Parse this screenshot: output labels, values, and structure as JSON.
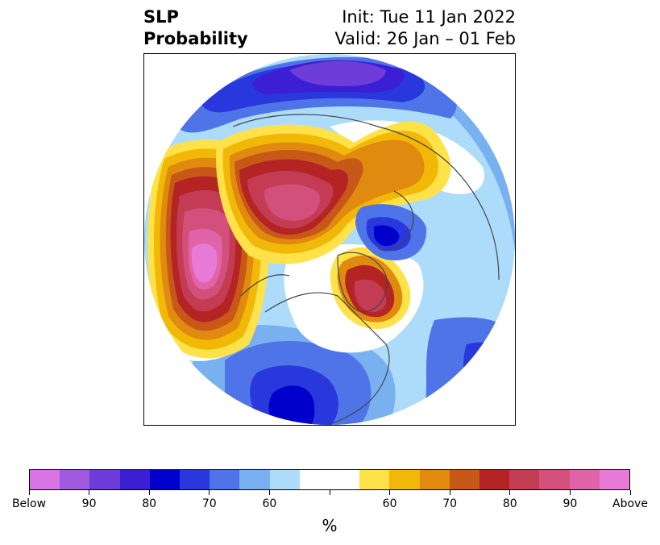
{
  "title": {
    "variable": "SLP",
    "product": "Probability",
    "init": "Init: Tue 11 Jan 2022",
    "valid": "Valid: 26 Jan – 01 Feb"
  },
  "colorbar": {
    "colors": [
      "#d874e4",
      "#a05ae0",
      "#6e3cd8",
      "#3c1ed4",
      "#0000cc",
      "#2838dc",
      "#4f74e8",
      "#79b0f0",
      "#acdcfa",
      "#ffffff",
      "#ffffff",
      "#ffe24a",
      "#f2b808",
      "#e08a10",
      "#c85818",
      "#b42424",
      "#c43c54",
      "#d4507c",
      "#e064a8",
      "#e87ad8"
    ],
    "ticks": [
      "Below",
      "90",
      "80",
      "70",
      "60",
      "",
      "60",
      "70",
      "80",
      "90",
      "Above"
    ],
    "unit": "%"
  },
  "map": {
    "projection": "north-polar-stereographic",
    "features": [
      "coastlines",
      "country-borders",
      "state-borders"
    ],
    "anomaly_regions": [
      {
        "name": "north-pacific-high",
        "sign": "above",
        "peak_percent": 90
      },
      {
        "name": "eurasia-arctic-high",
        "sign": "above",
        "peak_percent": 90
      },
      {
        "name": "greenland-high",
        "sign": "above",
        "peak_percent": 80
      },
      {
        "name": "northern-europe-low",
        "sign": "below",
        "peak_percent": 90
      },
      {
        "name": "north-atlantic-low",
        "sign": "below",
        "peak_percent": 80
      },
      {
        "name": "north-america-low",
        "sign": "below",
        "peak_percent": 80
      },
      {
        "name": "europe-low",
        "sign": "below",
        "peak_percent": 70
      }
    ]
  }
}
